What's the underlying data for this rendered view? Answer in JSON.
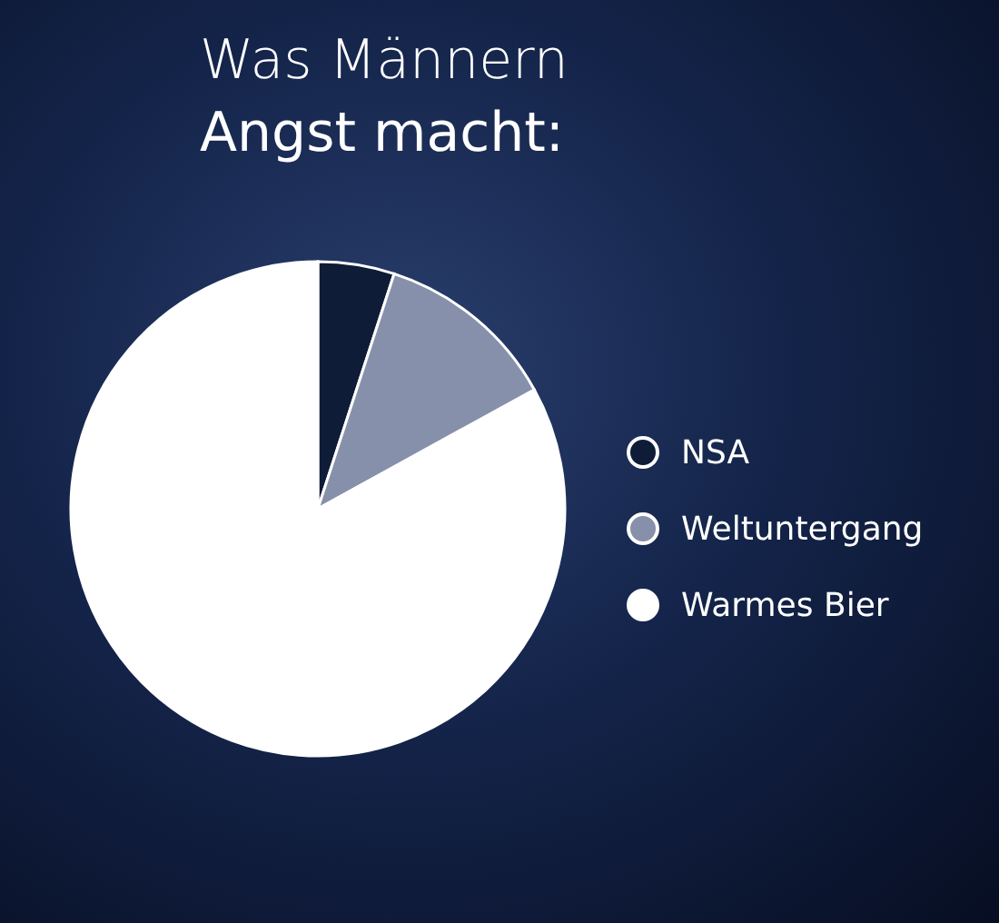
{
  "chart_data": {
    "type": "pie",
    "title": "Was Männern\nAngst macht:",
    "categories": [
      "NSA",
      "Weltuntergang",
      "Warmes Bier"
    ],
    "values": [
      5,
      12,
      83
    ],
    "colors": [
      "#0f1c38",
      "#8790ab",
      "#ffffff"
    ],
    "legend": "right"
  }
}
